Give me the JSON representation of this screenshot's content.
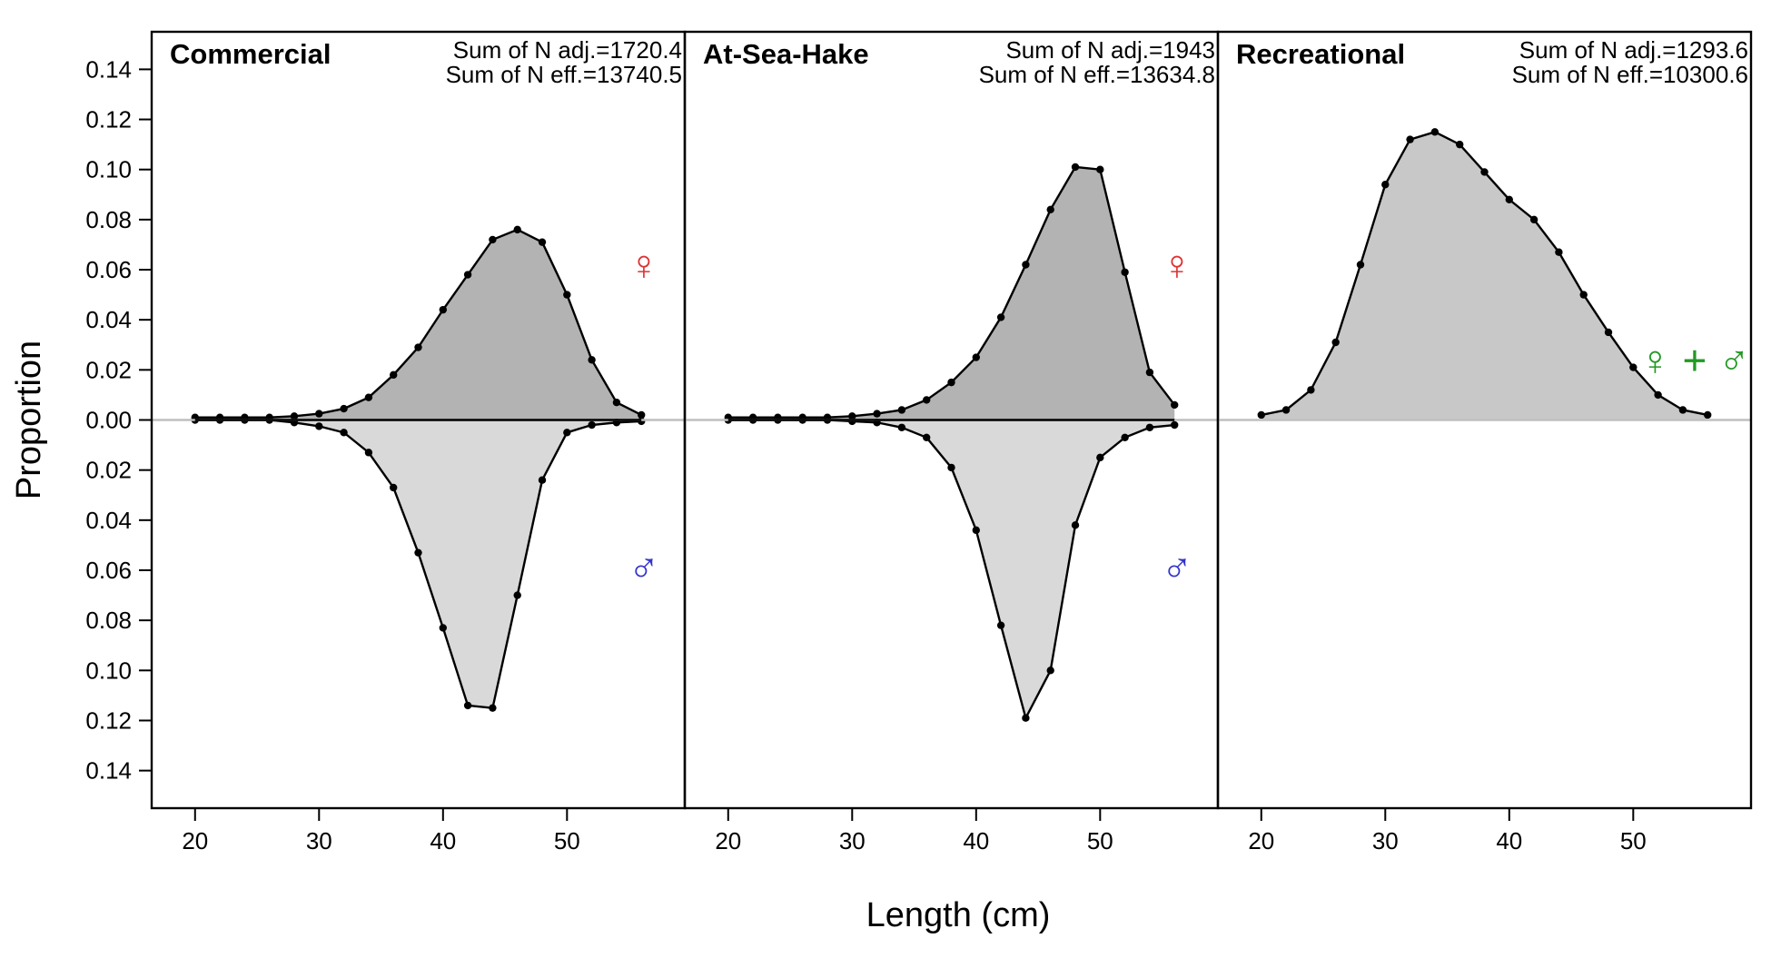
{
  "chart_data": {
    "type": "area",
    "xlabel": "Length (cm)",
    "ylabel": "Proportion",
    "xlim": [
      16.5,
      59.5
    ],
    "ylim": [
      -0.155,
      0.155
    ],
    "x_ticks": [
      20,
      30,
      40,
      50
    ],
    "x_tick_labels": [
      "20",
      "30",
      "40",
      "50"
    ],
    "y_ticks": [
      -0.14,
      -0.12,
      -0.1,
      -0.08,
      -0.06,
      -0.04,
      -0.02,
      0.0,
      0.02,
      0.04,
      0.06,
      0.08,
      0.1,
      0.12,
      0.14
    ],
    "y_tick_labels": [
      "0.14",
      "0.12",
      "0.10",
      "0.08",
      "0.06",
      "0.04",
      "0.02",
      "0.00",
      "0.02",
      "0.04",
      "0.06",
      "0.08",
      "0.10",
      "0.12",
      "0.14"
    ],
    "grid": false,
    "colors": {
      "female_fill": "#b3b3b3",
      "male_fill": "#d9d9d9",
      "combined_fill": "#c8c8c8",
      "line": "#000000",
      "zero_line": "#bfbfbf",
      "female_symbol": "#dd3333",
      "male_symbol": "#3333cc",
      "combined_symbol": "#229922"
    },
    "panels": [
      {
        "title": "Commercial",
        "note_line1": "Sum of N adj.=1720.4",
        "note_line2": "Sum of N eff.=13740.5",
        "series": [
          {
            "sex": "female",
            "symbol": "♀",
            "symbol_y": 0.062,
            "x": [
              20,
              22,
              24,
              26,
              28,
              30,
              32,
              34,
              36,
              38,
              40,
              42,
              44,
              46,
              48,
              50,
              52,
              54,
              56
            ],
            "values": [
              0.001,
              0.001,
              0.001,
              0.001,
              0.0015,
              0.0025,
              0.0045,
              0.009,
              0.018,
              0.029,
              0.044,
              0.058,
              0.072,
              0.076,
              0.071,
              0.05,
              0.024,
              0.007,
              0.002
            ]
          },
          {
            "sex": "male",
            "symbol": "♂",
            "symbol_y": -0.059,
            "x": [
              20,
              22,
              24,
              26,
              28,
              30,
              32,
              34,
              36,
              38,
              40,
              42,
              44,
              46,
              48,
              50,
              52,
              54,
              56
            ],
            "values": [
              0.0,
              0.0,
              0.0,
              0.0,
              0.001,
              0.0025,
              0.005,
              0.013,
              0.027,
              0.053,
              0.083,
              0.114,
              0.115,
              0.07,
              0.024,
              0.005,
              0.002,
              0.001,
              0.0005
            ]
          }
        ]
      },
      {
        "title": "At-Sea-Hake",
        "note_line1": "Sum of N adj.=1943",
        "note_line2": "Sum of N eff.=13634.8",
        "series": [
          {
            "sex": "female",
            "symbol": "♀",
            "symbol_y": 0.062,
            "x": [
              20,
              22,
              24,
              26,
              28,
              30,
              32,
              34,
              36,
              38,
              40,
              42,
              44,
              46,
              48,
              50,
              52,
              54,
              56
            ],
            "values": [
              0.001,
              0.001,
              0.001,
              0.001,
              0.001,
              0.0015,
              0.0025,
              0.004,
              0.008,
              0.015,
              0.025,
              0.041,
              0.062,
              0.084,
              0.101,
              0.1,
              0.059,
              0.019,
              0.006
            ]
          },
          {
            "sex": "male",
            "symbol": "♂",
            "symbol_y": -0.059,
            "x": [
              20,
              22,
              24,
              26,
              28,
              30,
              32,
              34,
              36,
              38,
              40,
              42,
              44,
              46,
              48,
              50,
              52,
              54,
              56
            ],
            "values": [
              0.0,
              0.0,
              0.0,
              0.0,
              0.0,
              0.0005,
              0.001,
              0.003,
              0.007,
              0.019,
              0.044,
              0.082,
              0.119,
              0.1,
              0.042,
              0.015,
              0.007,
              0.003,
              0.002
            ]
          }
        ]
      },
      {
        "title": "Recreational",
        "note_line1": "Sum of N adj.=1293.6",
        "note_line2": "Sum of N eff.=10300.6",
        "series": [
          {
            "sex": "combined",
            "symbol": "♀ + ♂",
            "symbol_y": 0.024,
            "x": [
              20,
              22,
              24,
              26,
              28,
              30,
              32,
              34,
              36,
              38,
              40,
              42,
              44,
              46,
              48,
              50,
              52,
              54,
              56
            ],
            "values": [
              0.002,
              0.004,
              0.012,
              0.031,
              0.062,
              0.094,
              0.112,
              0.115,
              0.11,
              0.099,
              0.088,
              0.08,
              0.067,
              0.05,
              0.035,
              0.021,
              0.01,
              0.004,
              0.002
            ]
          }
        ]
      }
    ]
  }
}
